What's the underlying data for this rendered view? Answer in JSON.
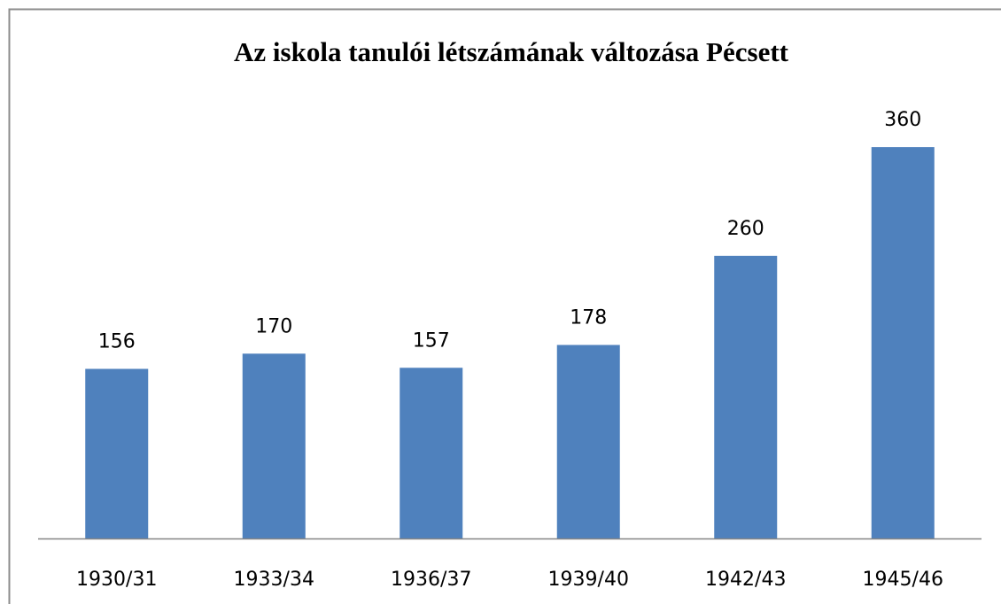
{
  "chart_data": {
    "type": "bar",
    "title": "Az iskola tanulói létszámának változása Pécsett",
    "categories": [
      "1930/31",
      "1933/34",
      "1936/37",
      "1939/40",
      "1942/43",
      "1945/46"
    ],
    "values": [
      156,
      170,
      157,
      178,
      260,
      360
    ],
    "color": "#4f81bd",
    "ylim": [
      0,
      400
    ],
    "data_labels": true
  }
}
